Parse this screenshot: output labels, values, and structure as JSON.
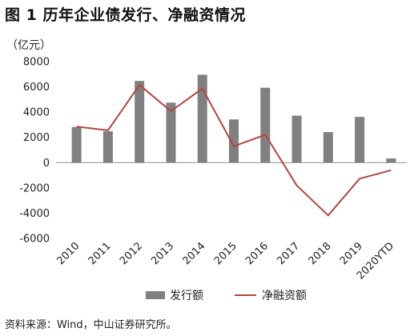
{
  "page": {
    "title": "图 1    历年企业债发行、净融资情况",
    "unit_label": "（亿元）",
    "source": "资料来源：Wind，中山证券研究所。"
  },
  "colors": {
    "bar": "#808080",
    "line": "#b5443f",
    "axis": "#8c8c8c"
  },
  "chart_data": {
    "type": "bar+line",
    "categories": [
      "2010",
      "2011",
      "2012",
      "2013",
      "2014",
      "2015",
      "2016",
      "2017",
      "2018",
      "2019",
      "2020YTD"
    ],
    "series": [
      {
        "name": "发行额",
        "type": "bar",
        "values": [
          2820,
          2480,
          6470,
          4750,
          6960,
          3420,
          5930,
          3720,
          2420,
          3620,
          330
        ]
      },
      {
        "name": "净融资额",
        "type": "line",
        "values": [
          2850,
          2560,
          6150,
          4070,
          5870,
          1300,
          2210,
          -1800,
          -4180,
          -1270,
          -600
        ]
      }
    ],
    "ylim": [
      -6000,
      8000
    ],
    "yticks": [
      -6000,
      -4000,
      -2000,
      0,
      2000,
      4000,
      6000,
      8000
    ],
    "legend_position": "bottom",
    "grid": false
  }
}
